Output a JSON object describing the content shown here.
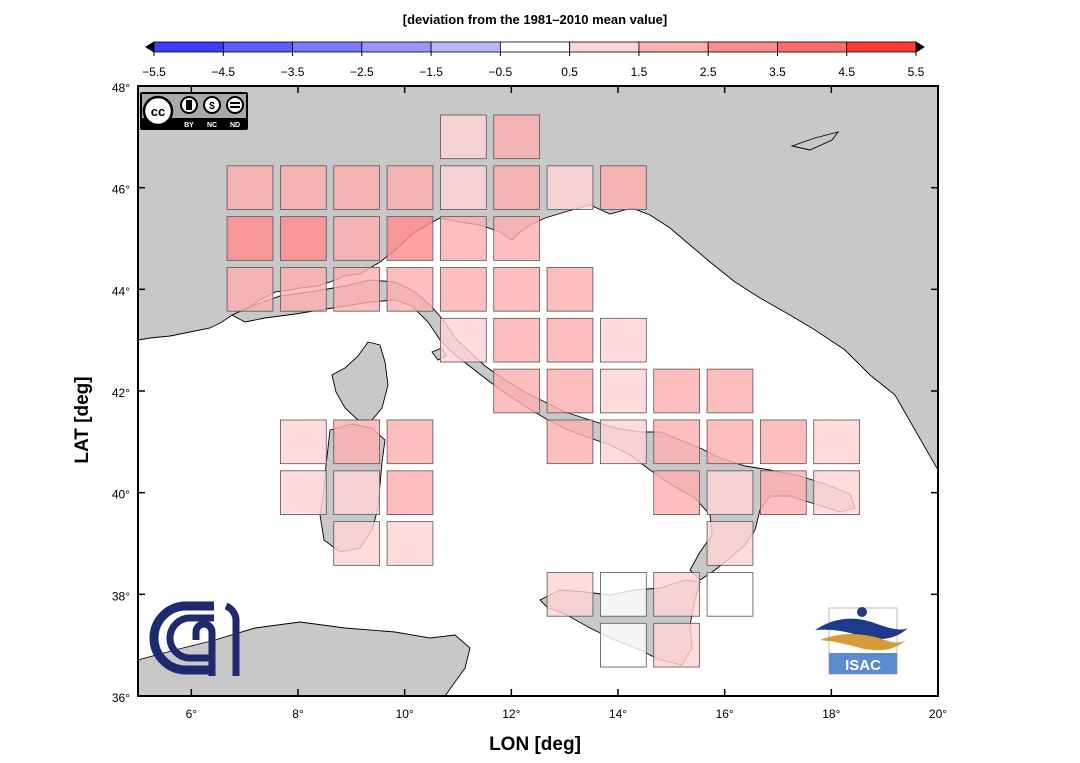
{
  "colorbar": {
    "title": "[deviation from the 1981–2010 mean value]",
    "ticks": [
      "−5.5",
      "−4.5",
      "−3.5",
      "−2.5",
      "−1.5",
      "−0.5",
      "0.5",
      "1.5",
      "2.5",
      "3.5",
      "4.5",
      "5.5"
    ],
    "colors": [
      "#3d3dff",
      "#5b5bff",
      "#7979ff",
      "#9797ff",
      "#b7b7ff",
      "#ffffff",
      "#ffd4d4",
      "#ffb0b0",
      "#ff8c8c",
      "#ff6a6a",
      "#ff3a3a"
    ]
  },
  "axes": {
    "xlabel": "LON [deg]",
    "ylabel": "LAT [deg]",
    "xticks": [
      "6°",
      "8°",
      "10°",
      "12°",
      "14°",
      "16°",
      "18°",
      "20°"
    ],
    "yticks": [
      "36°",
      "38°",
      "40°",
      "42°",
      "44°",
      "46°",
      "48°"
    ],
    "xlim": [
      5,
      20
    ],
    "ylim": [
      36,
      48
    ]
  },
  "map_colors": {
    "land": "#c8c8c8",
    "sea": "#ffffff",
    "coast": "#000000"
  },
  "license": {
    "labels": [
      "BY",
      "NC",
      "ND"
    ]
  },
  "logos": {
    "isac": "ISAC",
    "cnr": "CNR"
  },
  "chart_data": {
    "type": "heatmap",
    "value_units": "deviation from the 1981–2010 mean value",
    "cells": [
      {
        "lon": 7.1,
        "lat": 46.0,
        "cls": 2
      },
      {
        "lon": 8.1,
        "lat": 46.0,
        "cls": 2
      },
      {
        "lon": 9.1,
        "lat": 46.0,
        "cls": 2
      },
      {
        "lon": 10.1,
        "lat": 46.0,
        "cls": 2
      },
      {
        "lon": 11.1,
        "lat": 46.0,
        "cls": 1
      },
      {
        "lon": 12.1,
        "lat": 46.0,
        "cls": 2
      },
      {
        "lon": 13.1,
        "lat": 46.0,
        "cls": 1
      },
      {
        "lon": 14.1,
        "lat": 46.0,
        "cls": 2
      },
      {
        "lon": 11.1,
        "lat": 47.0,
        "cls": 1
      },
      {
        "lon": 12.1,
        "lat": 47.0,
        "cls": 2
      },
      {
        "lon": 7.1,
        "lat": 45.0,
        "cls": 3
      },
      {
        "lon": 8.1,
        "lat": 45.0,
        "cls": 3
      },
      {
        "lon": 9.1,
        "lat": 45.0,
        "cls": 2
      },
      {
        "lon": 10.1,
        "lat": 45.0,
        "cls": 3
      },
      {
        "lon": 11.1,
        "lat": 45.0,
        "cls": 2
      },
      {
        "lon": 12.1,
        "lat": 45.0,
        "cls": 2
      },
      {
        "lon": 7.1,
        "lat": 44.0,
        "cls": 2
      },
      {
        "lon": 8.1,
        "lat": 44.0,
        "cls": 2
      },
      {
        "lon": 9.1,
        "lat": 44.0,
        "cls": 2
      },
      {
        "lon": 10.1,
        "lat": 44.0,
        "cls": 2
      },
      {
        "lon": 11.1,
        "lat": 44.0,
        "cls": 2
      },
      {
        "lon": 12.1,
        "lat": 44.0,
        "cls": 2
      },
      {
        "lon": 13.1,
        "lat": 44.0,
        "cls": 2
      },
      {
        "lon": 11.1,
        "lat": 43.0,
        "cls": 1
      },
      {
        "lon": 12.1,
        "lat": 43.0,
        "cls": 2
      },
      {
        "lon": 13.1,
        "lat": 43.0,
        "cls": 2
      },
      {
        "lon": 14.1,
        "lat": 43.0,
        "cls": 1
      },
      {
        "lon": 12.1,
        "lat": 42.0,
        "cls": 2
      },
      {
        "lon": 13.1,
        "lat": 42.0,
        "cls": 2
      },
      {
        "lon": 14.1,
        "lat": 42.0,
        "cls": 1
      },
      {
        "lon": 15.1,
        "lat": 42.0,
        "cls": 2
      },
      {
        "lon": 16.1,
        "lat": 42.0,
        "cls": 2
      },
      {
        "lon": 8.1,
        "lat": 41.0,
        "cls": 1
      },
      {
        "lon": 9.1,
        "lat": 41.0,
        "cls": 2
      },
      {
        "lon": 10.1,
        "lat": 41.0,
        "cls": 2
      },
      {
        "lon": 13.1,
        "lat": 41.0,
        "cls": 2
      },
      {
        "lon": 14.1,
        "lat": 41.0,
        "cls": 1
      },
      {
        "lon": 15.1,
        "lat": 41.0,
        "cls": 2
      },
      {
        "lon": 16.1,
        "lat": 41.0,
        "cls": 2
      },
      {
        "lon": 17.1,
        "lat": 41.0,
        "cls": 2
      },
      {
        "lon": 18.1,
        "lat": 41.0,
        "cls": 1
      },
      {
        "lon": 8.1,
        "lat": 40.0,
        "cls": 1
      },
      {
        "lon": 9.1,
        "lat": 40.0,
        "cls": 1
      },
      {
        "lon": 10.1,
        "lat": 40.0,
        "cls": 2
      },
      {
        "lon": 15.1,
        "lat": 40.0,
        "cls": 2
      },
      {
        "lon": 16.1,
        "lat": 40.0,
        "cls": 1
      },
      {
        "lon": 17.1,
        "lat": 40.0,
        "cls": 2
      },
      {
        "lon": 18.1,
        "lat": 40.0,
        "cls": 1
      },
      {
        "lon": 9.1,
        "lat": 39.0,
        "cls": 1
      },
      {
        "lon": 10.1,
        "lat": 39.0,
        "cls": 1
      },
      {
        "lon": 16.1,
        "lat": 39.0,
        "cls": 1
      },
      {
        "lon": 13.1,
        "lat": 38.0,
        "cls": 1
      },
      {
        "lon": 14.1,
        "lat": 38.0,
        "cls": 0
      },
      {
        "lon": 15.1,
        "lat": 38.0,
        "cls": 1
      },
      {
        "lon": 16.1,
        "lat": 38.0,
        "cls": 0
      },
      {
        "lon": 14.1,
        "lat": 37.0,
        "cls": 0
      },
      {
        "lon": 15.1,
        "lat": 37.0,
        "cls": 1
      }
    ],
    "class_ranges": [
      "−0.5 to 0.5",
      "0.5 to 1.5",
      "1.5 to 2.5",
      "2.5 to 3.5"
    ]
  }
}
